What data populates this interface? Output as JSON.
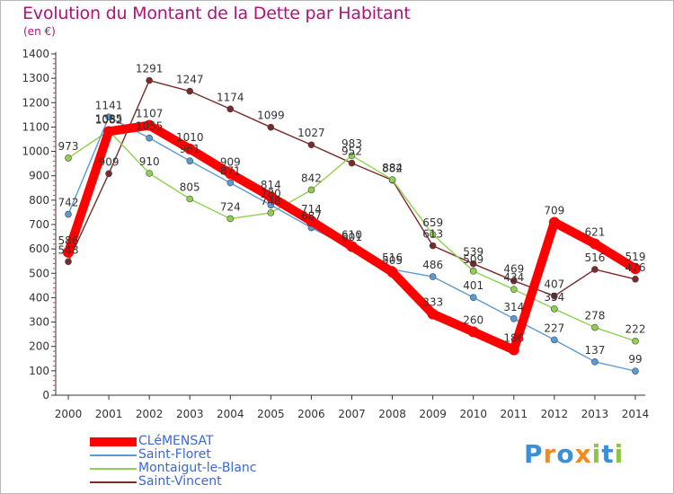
{
  "chart_data": {
    "type": "line",
    "title": "Evolution du Montant de la Dette par Habitant",
    "subtitle": "(en €)",
    "categories": [
      "2000",
      "2001",
      "2002",
      "2003",
      "2004",
      "2005",
      "2006",
      "2007",
      "2008",
      "2009",
      "2010",
      "2011",
      "2012",
      "2013",
      "2014"
    ],
    "ylim": [
      0,
      1400
    ],
    "yticks": [
      0,
      100,
      200,
      300,
      400,
      500,
      600,
      700,
      800,
      900,
      1000,
      1100,
      1200,
      1300,
      1400
    ],
    "grid": false,
    "legend_position": "bottom-left",
    "series": [
      {
        "name": "CLéMENSAT",
        "color": "#ff0000",
        "values": [
          586,
          1082,
          1107,
          1010,
          909,
          814,
          714,
          610,
          505,
          333,
          260,
          186,
          709,
          621,
          519
        ]
      },
      {
        "name": "Saint-Floret",
        "color": "#5b9bd5",
        "values": [
          742,
          1141,
          1055,
          961,
          871,
          780,
          687,
          601,
          516,
          486,
          401,
          314,
          227,
          137,
          99
        ]
      },
      {
        "name": "Montaigut-le-Blanc",
        "color": "#8fd14f",
        "values": [
          973,
          1085,
          910,
          805,
          724,
          748,
          842,
          983,
          884,
          659,
          509,
          434,
          354,
          278,
          222
        ]
      },
      {
        "name": "Saint-Vincent",
        "color": "#7a2a2a",
        "values": [
          548,
          909,
          1291,
          1247,
          1174,
          1099,
          1027,
          952,
          882,
          613,
          539,
          469,
          407,
          516,
          476
        ]
      }
    ]
  },
  "logo": {
    "text": "Proxiti",
    "letters": [
      "P",
      "r",
      "o",
      "x",
      "i",
      "t",
      "i"
    ],
    "colors": [
      "#3a8fd8",
      "#f28a1e",
      "#3a8fd8",
      "#f28a1e",
      "#8cc63f",
      "#3a8fd8",
      "#8cc63f"
    ]
  },
  "title_color": "#b0127a",
  "axis_text_color": "#333333"
}
